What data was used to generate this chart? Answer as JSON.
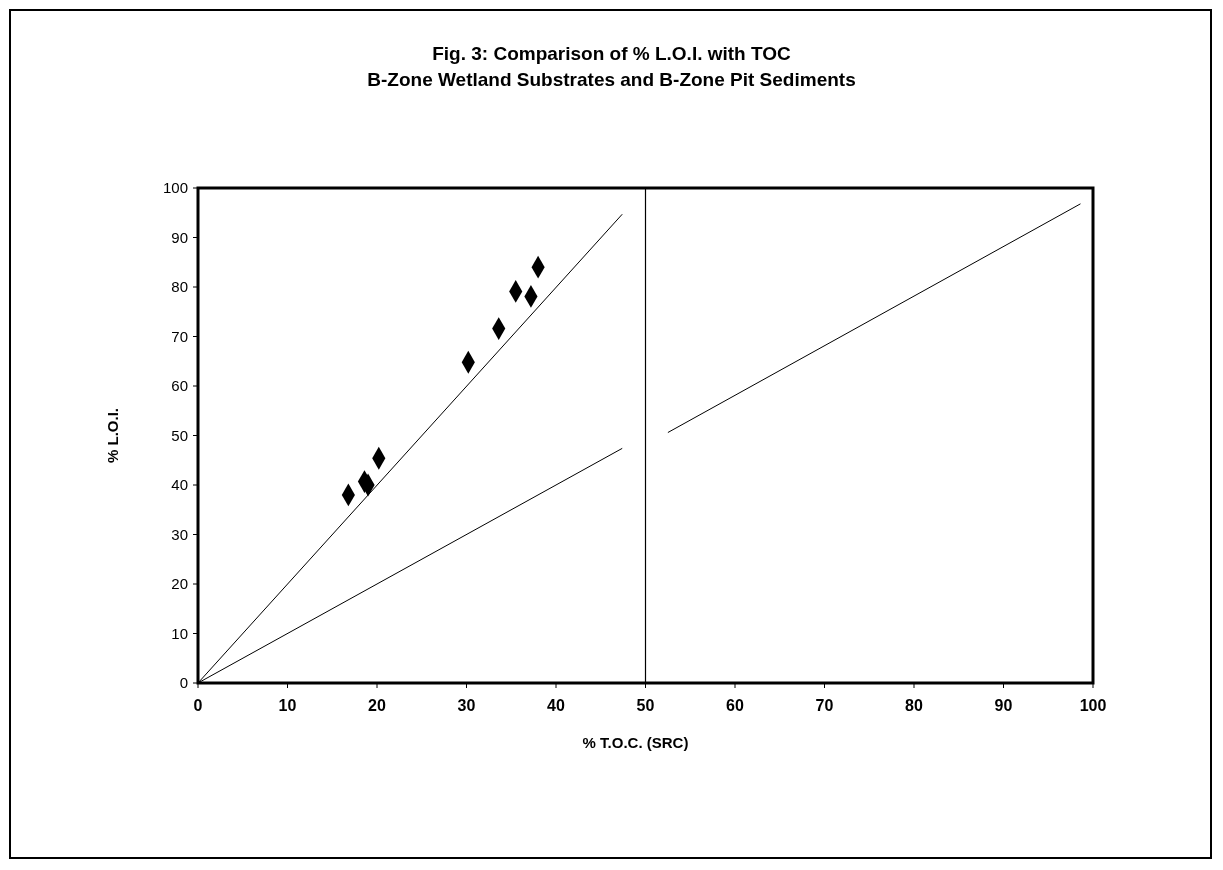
{
  "chart_data": {
    "type": "scatter",
    "title": "Fig. 3:  Comparison of % L.O.I. with TOC",
    "subtitle": "B-Zone Wetland Substrates and B-Zone Pit Sediments",
    "xlabel": "% T.O.C. (SRC)",
    "ylabel": "% L.O.I.",
    "xlim": [
      0,
      100
    ],
    "ylim": [
      0,
      100
    ],
    "xticks": [
      0,
      10,
      20,
      30,
      40,
      50,
      60,
      70,
      80,
      90,
      100
    ],
    "yticks": [
      0,
      10,
      20,
      30,
      40,
      50,
      60,
      70,
      80,
      90,
      100
    ],
    "grid": false,
    "series": [
      {
        "color": "#000000",
        "marker": "diamond",
        "x": [
          16.8,
          18.6,
          19.0,
          20.2,
          30.2,
          33.6,
          35.5,
          37.2,
          38.0
        ],
        "values": [
          38,
          40.7,
          40.0,
          45.4,
          64.8,
          71.6,
          79.1,
          78.1,
          84
        ]
      },
      {
        "type": "line",
        "color": "#000000",
        "marker": "none",
        "line_style": "solid",
        "x": [
          0,
          47.4
        ],
        "values": [
          0,
          94.7
        ]
      },
      {
        "type": "line",
        "color": "#000000",
        "marker": "none",
        "line_style": "solid",
        "x": [
          0,
          47.4,
          50,
          52.5,
          98.6
        ],
        "values": [
          0,
          47.4,
          null,
          50.6,
          96.8
        ]
      }
    ],
    "ref_lines": [
      {
        "axis": "x",
        "value": 50,
        "color": "#000000"
      }
    ]
  }
}
